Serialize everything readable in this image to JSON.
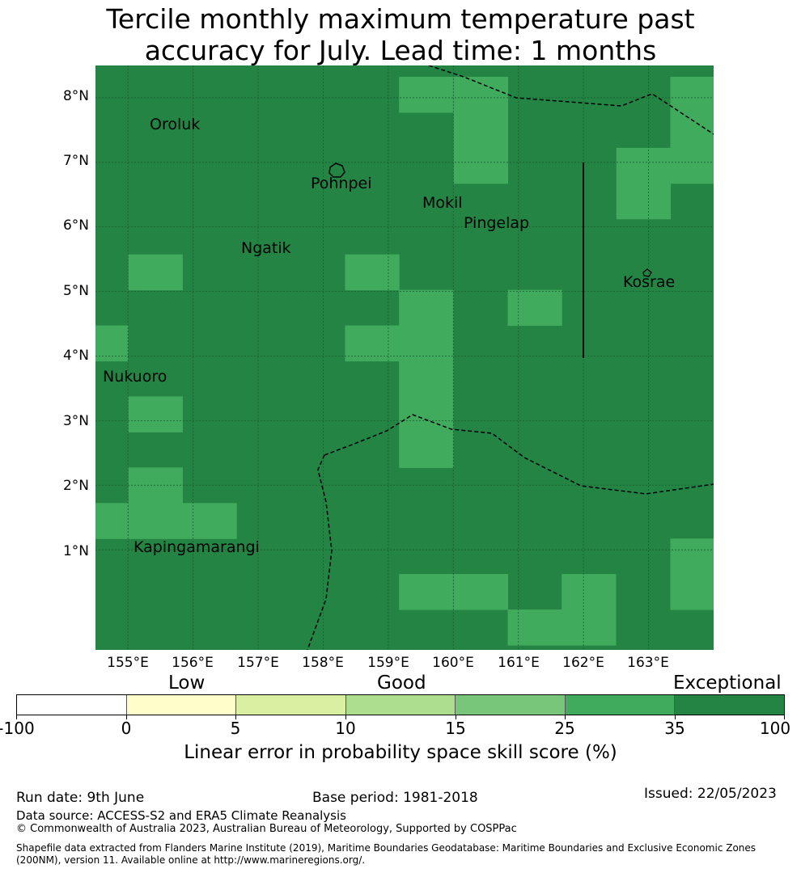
{
  "title": {
    "line1": "Tercile monthly maximum temperature past",
    "line2": "accuracy for July. Lead time: 1 months"
  },
  "map": {
    "lat_labels": [
      "8°N",
      "7°N",
      "6°N",
      "5°N",
      "4°N",
      "3°N",
      "2°N",
      "1°N"
    ],
    "lon_labels": [
      "155°E",
      "156°E",
      "157°E",
      "158°E",
      "159°E",
      "160°E",
      "161°E",
      "162°E",
      "163°E"
    ],
    "islands": [
      "Oroluk",
      "Pohnpei",
      "Mokil",
      "Pingelap",
      "Ngatik",
      "Kosrae",
      "Nukuoro",
      "Kapingamarangi"
    ],
    "colors": {
      "exceptional": "#238443",
      "very_good": "#41ab5d",
      "grid_line": "#1a5e30",
      "boundary": "#000000"
    },
    "grid": {
      "lon_range": [
        154.5,
        164.0
      ],
      "lat_range": [
        -0.55,
        8.5
      ],
      "cell_lon_step": 0.83,
      "cell_lat_step": 0.55,
      "skill_cells_25_35": [
        {
          "lon": 159.58,
          "lat": 8.05
        },
        {
          "lon": 160.42,
          "lat": 8.05
        },
        {
          "lon": 163.75,
          "lat": 8.05
        },
        {
          "lon": 160.42,
          "lat": 7.5
        },
        {
          "lon": 163.75,
          "lat": 7.5
        },
        {
          "lon": 160.42,
          "lat": 6.95
        },
        {
          "lon": 162.92,
          "lat": 6.95
        },
        {
          "lon": 163.75,
          "lat": 6.95
        },
        {
          "lon": 162.92,
          "lat": 6.4
        },
        {
          "lon": 155.42,
          "lat": 5.3
        },
        {
          "lon": 158.75,
          "lat": 5.3
        },
        {
          "lon": 159.58,
          "lat": 4.75
        },
        {
          "lon": 161.25,
          "lat": 4.75
        },
        {
          "lon": 154.58,
          "lat": 4.2
        },
        {
          "lon": 158.75,
          "lat": 4.2
        },
        {
          "lon": 159.58,
          "lat": 4.2
        },
        {
          "lon": 159.58,
          "lat": 3.65
        },
        {
          "lon": 155.42,
          "lat": 3.1
        },
        {
          "lon": 159.58,
          "lat": 3.1
        },
        {
          "lon": 159.58,
          "lat": 2.55
        },
        {
          "lon": 155.42,
          "lat": 2.0
        },
        {
          "lon": 154.58,
          "lat": 1.45
        },
        {
          "lon": 155.42,
          "lat": 1.45
        },
        {
          "lon": 156.25,
          "lat": 1.45
        },
        {
          "lon": 163.75,
          "lat": 0.9
        },
        {
          "lon": 159.58,
          "lat": 0.35
        },
        {
          "lon": 160.42,
          "lat": 0.35
        },
        {
          "lon": 162.08,
          "lat": 0.35
        },
        {
          "lon": 163.75,
          "lat": 0.35
        },
        {
          "lon": 161.25,
          "lat": -0.2
        },
        {
          "lon": 162.08,
          "lat": -0.2
        }
      ]
    }
  },
  "colorbar": {
    "categories": [
      "Low",
      "Good",
      "Exceptional"
    ],
    "ticks": [
      "-100",
      "0",
      "5",
      "10",
      "15",
      "25",
      "35",
      "100"
    ],
    "colors": [
      "#ffffff",
      "#ffffcc",
      "#d9f0a3",
      "#addd8e",
      "#78c679",
      "#41ab5d",
      "#238443"
    ],
    "label": "Linear error in probability space skill score (%)"
  },
  "footer": {
    "run_date": "Run date: 9th June",
    "base_period": "Base period: 1981-2018",
    "issued": "Issued: 22/05/2023",
    "data_source": "Data source: ACCESS-S2 and ERA5 Climate Reanalysis",
    "copyright": "© Commonwealth of Australia 2023, Australian Bureau of Meteorology, Supported by COSPPac",
    "shapefile_line1": "Shapefile data extracted from Flanders Marine Institute (2019), Maritime Boundaries Geodatabase: Maritime Boundaries and Exclusive Economic Zones",
    "shapefile_line2": "(200NM), version 11. Available online at http://www.marineregions.org/."
  }
}
